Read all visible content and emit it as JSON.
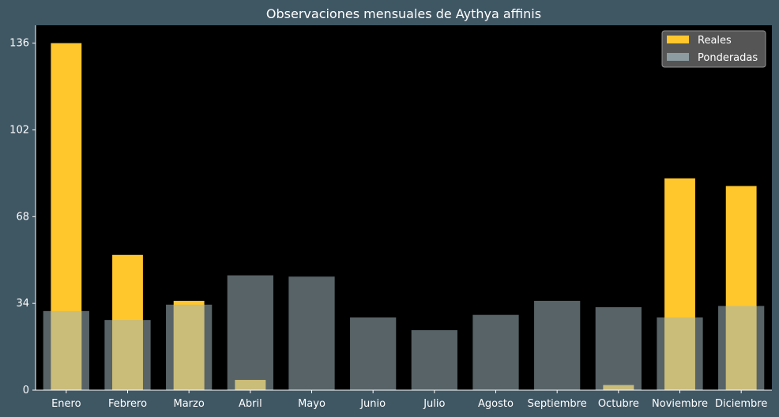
{
  "chart_data": {
    "type": "bar",
    "title": "Observaciones mensuales de Aythya affinis",
    "xlabel": "",
    "ylabel": "",
    "categories": [
      "Enero",
      "Febrero",
      "Marzo",
      "Abril",
      "Mayo",
      "Junio",
      "Julio",
      "Agosto",
      "Septiembre",
      "Octubre",
      "Noviembre",
      "Diciembre"
    ],
    "series": [
      {
        "name": "Reales",
        "values": [
          136,
          53,
          35,
          4,
          0,
          0,
          0,
          0,
          0,
          2,
          83,
          80
        ],
        "color": "#ffc72c"
      },
      {
        "name": "Ponderadas",
        "values": [
          31,
          27.5,
          33.5,
          45,
          44.5,
          28.5,
          23.5,
          29.5,
          35,
          32.5,
          28.5,
          33
        ],
        "color": "#9fb4bb"
      }
    ],
    "yticks": [
      0,
      34,
      68,
      102,
      136
    ],
    "ylim": [
      0,
      143
    ],
    "grid": false,
    "legend": "top-right",
    "colors": {
      "background": "#3f5663",
      "plot_area": "#000000",
      "text": "#ffffff"
    }
  }
}
